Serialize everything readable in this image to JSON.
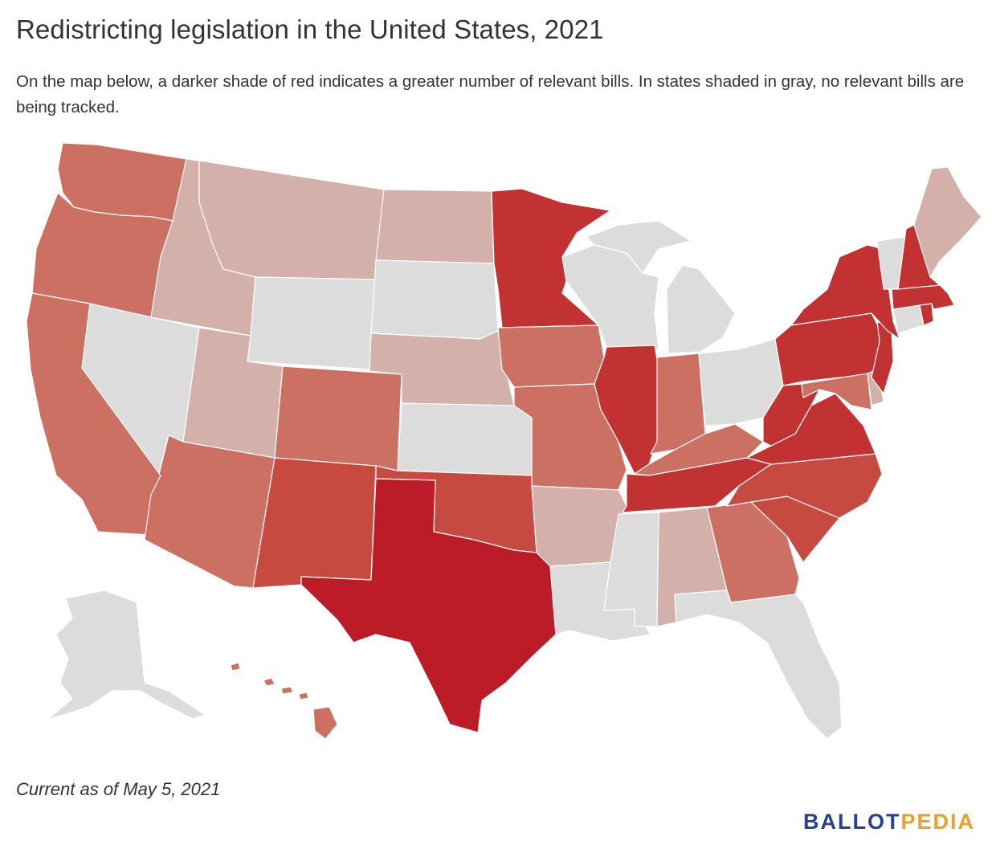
{
  "title": "Redistricting legislation in the United States, 2021",
  "subtitle": "On the map below, a darker shade of red indicates a greater number of relevant bills. In states shaded in gray, no relevant bills are being tracked.",
  "note": "Current as of May 5, 2021",
  "logo": {
    "part1": "BALLOT",
    "part2": "PEDIA",
    "color1": "#2b3f91",
    "color2": "#e7a22b"
  },
  "colors": {
    "none": "#dcdcdc",
    "level1": "#d4b0ab",
    "level2": "#cc7063",
    "level3": "#c74a41",
    "level4": "#c23232",
    "level5": "#bc1c27"
  },
  "states": {
    "WA": 2,
    "OR": 2,
    "CA": 2,
    "NV": 0,
    "ID": 1,
    "MT": 1,
    "WY": 0,
    "UT": 1,
    "AZ": 2,
    "CO": 2,
    "NM": 3,
    "ND": 1,
    "SD": 0,
    "NE": 1,
    "KS": 0,
    "OK": 3,
    "TX": 5,
    "MN": 4,
    "IA": 2,
    "MO": 2,
    "AR": 1,
    "LA": 0,
    "WI": 0,
    "IL": 4,
    "MS": 0,
    "MI": 0,
    "IN": 2,
    "OH": 0,
    "KY": 2,
    "TN": 4,
    "AL": 1,
    "GA": 2,
    "FL": 0,
    "SC": 3,
    "NC": 3,
    "VA": 4,
    "WV": 4,
    "PA": 4,
    "NY": 4,
    "VT": 0,
    "NH": 4,
    "ME": 1,
    "MA": 4,
    "RI": 4,
    "CT": 0,
    "NJ": 4,
    "DE": 1,
    "MD": 2,
    "AK": 0,
    "HI": 2
  }
}
